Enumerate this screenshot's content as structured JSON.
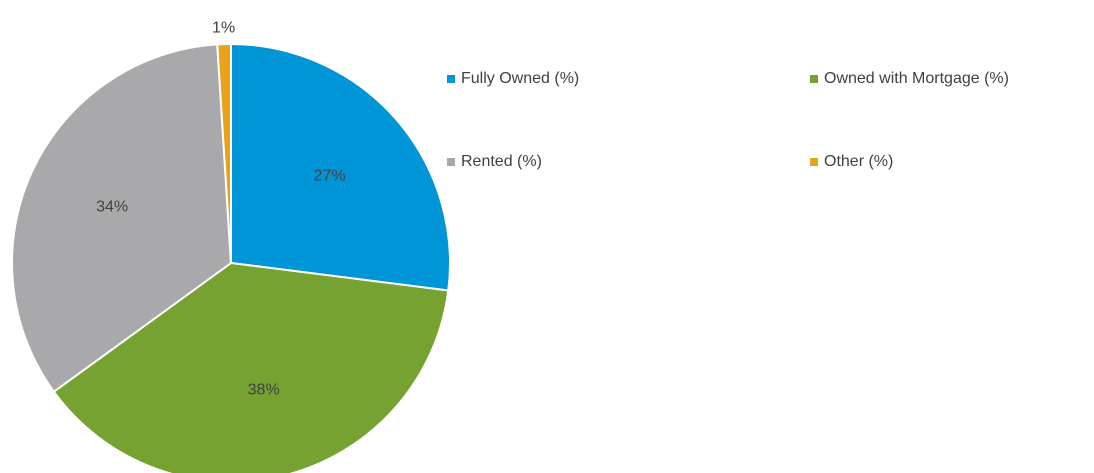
{
  "chart_data": {
    "type": "pie",
    "categories": [
      "Fully Owned (%)",
      "Owned with Mortgage (%)",
      "Rented (%)",
      "Other (%)"
    ],
    "values": [
      27,
      38,
      34,
      1
    ],
    "value_labels": [
      "27%",
      "38%",
      "34%",
      "1%"
    ],
    "colors": [
      "#0095d6",
      "#76a232",
      "#a9a9ab",
      "#e8a317"
    ],
    "legend": "right"
  }
}
